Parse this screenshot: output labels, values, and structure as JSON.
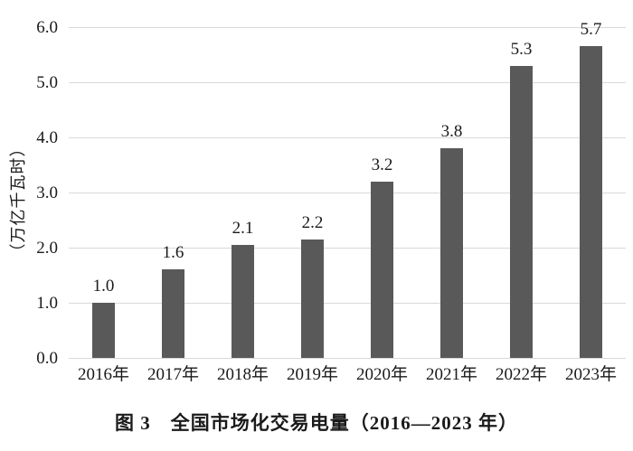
{
  "chart_data": {
    "type": "bar",
    "title": "图 3　全国市场化交易电量（2016—2023 年）",
    "ylabel": "（万亿千瓦时）",
    "categories": [
      "2016年",
      "2017年",
      "2018年",
      "2019年",
      "2020年",
      "2021年",
      "2022年",
      "2023年"
    ],
    "values": [
      1.0,
      1.6,
      2.05,
      2.15,
      3.2,
      3.8,
      5.3,
      5.65
    ],
    "bar_labels": [
      "1.0",
      "1.6",
      "2.1",
      "2.2",
      "3.2",
      "3.8",
      "5.3",
      "5.7"
    ],
    "ylim": [
      0,
      6
    ],
    "ytick_labels": [
      "0.0",
      "1.0",
      "2.0",
      "3.0",
      "4.0",
      "5.0",
      "6.0"
    ],
    "grid": "horizontal",
    "legend": "none",
    "bar_color": "#595959",
    "grid_color": "#d9d9d9",
    "text_color": "#1a1a1a",
    "background_color": "#ffffff"
  }
}
